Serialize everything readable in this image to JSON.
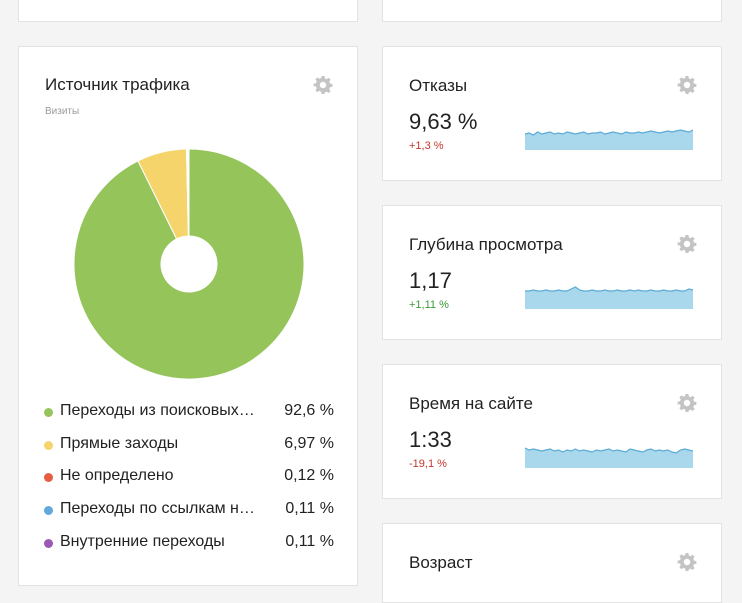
{
  "traffic": {
    "title": "Источник трафика",
    "subtitle": "Визиты",
    "items": [
      {
        "label": "Переходы из поисковых систем",
        "percent": "92,6 %",
        "value": 92.6,
        "color": "#95c45a"
      },
      {
        "label": "Прямые заходы",
        "percent": "6,97 %",
        "value": 6.97,
        "color": "#f5d56b"
      },
      {
        "label": "Не определено",
        "percent": "0,12 %",
        "value": 0.12,
        "color": "#e85c41"
      },
      {
        "label": "Переходы по ссылкам на сайтах",
        "percent": "0,11 %",
        "value": 0.11,
        "color": "#62a8dd"
      },
      {
        "label": "Внутренние переходы",
        "percent": "0,11 %",
        "value": 0.11,
        "color": "#9b59b6"
      }
    ]
  },
  "metrics": {
    "bounce": {
      "title": "Отказы",
      "value": "9,63 %",
      "delta": "+1,3 %"
    },
    "depth": {
      "title": "Глубина просмотра",
      "value": "1,17",
      "delta": "+1,11 %"
    },
    "time": {
      "title": "Время на сайте",
      "value": "1:33",
      "delta": "-19,1 %"
    },
    "age": {
      "title": "Возраст"
    }
  },
  "colors": {
    "spark_fill": "#a9d8ec",
    "spark_line": "#5aaad6"
  }
}
